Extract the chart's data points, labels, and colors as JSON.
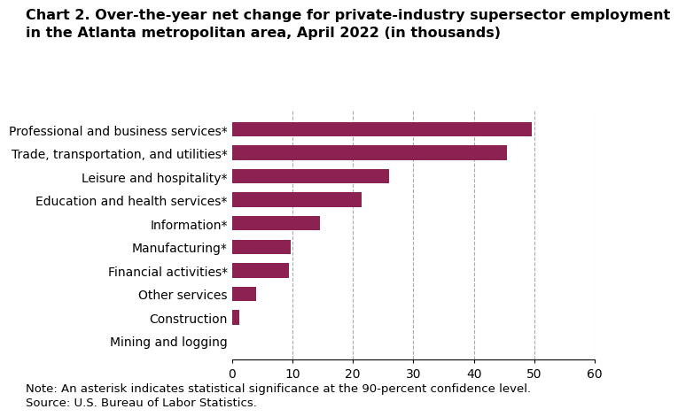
{
  "title_line1": "Chart 2. Over-the-year net change for private-industry supersector employment",
  "title_line2": "in the Atlanta metropolitan area, April 2022 (in thousands)",
  "categories": [
    "Mining and logging",
    "Construction",
    "Other services",
    "Financial activities*",
    "Manufacturing*",
    "Information*",
    "Education and health services*",
    "Leisure and hospitality*",
    "Trade, transportation, and utilities*",
    "Professional and business services*"
  ],
  "values": [
    0.1,
    1.2,
    4.0,
    9.5,
    9.7,
    14.5,
    21.5,
    26.0,
    45.5,
    49.5
  ],
  "bar_color": "#8B2252",
  "xlim": [
    0,
    60
  ],
  "xticks": [
    0,
    10,
    20,
    30,
    40,
    50,
    60
  ],
  "grid_color": "#aaaaaa",
  "background_color": "#ffffff",
  "note": "Note: An asterisk indicates statistical significance at the 90-percent confidence level.",
  "source": "Source: U.S. Bureau of Labor Statistics.",
  "title_fontsize": 11.5,
  "label_fontsize": 10,
  "tick_fontsize": 10,
  "note_fontsize": 9.5
}
